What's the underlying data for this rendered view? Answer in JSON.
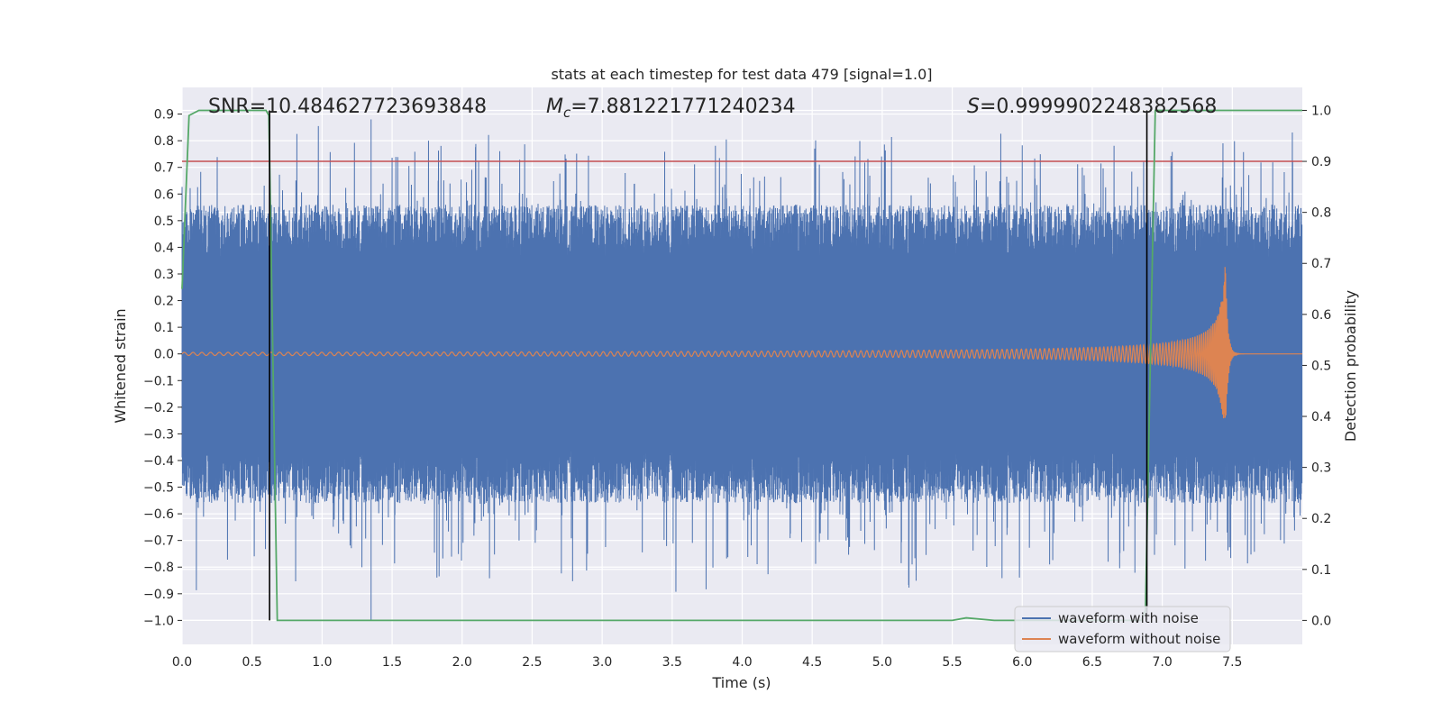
{
  "chart_data": {
    "type": "line",
    "title": "stats at each timestep for test data 479 [signal=1.0]",
    "xlabel": "Time (s)",
    "ylabel": "Whitened strain",
    "y2label": "Detection probability",
    "xlim": [
      0.0,
      8.0
    ],
    "ylim": [
      -1.09,
      1.0
    ],
    "y2lim": [
      -0.047,
      1.045
    ],
    "xticks": [
      "0.0",
      "0.5",
      "1.0",
      "1.5",
      "2.0",
      "2.5",
      "3.0",
      "3.5",
      "4.0",
      "4.5",
      "5.0",
      "5.5",
      "6.0",
      "6.5",
      "7.0",
      "7.5"
    ],
    "yticks": [
      "0.9",
      "0.8",
      "0.7",
      "0.6",
      "0.5",
      "0.4",
      "0.3",
      "0.2",
      "0.1",
      "0.0",
      "−0.1",
      "−0.2",
      "−0.3",
      "−0.4",
      "−0.5",
      "−0.6",
      "−0.7",
      "−0.8",
      "−0.9",
      "−1.0"
    ],
    "y2ticks": [
      "1.0",
      "0.9",
      "0.8",
      "0.7",
      "0.6",
      "0.5",
      "0.4",
      "0.3",
      "0.2",
      "0.1",
      "0.0"
    ],
    "annotations": {
      "snr": "SNR=10.484627723693848",
      "mc_symbol": "M",
      "mc_sub": "c",
      "mc_value": "=7.881221771240234",
      "s_symbol": "S",
      "s_value": "=0.9999902248382568"
    },
    "threshold": 0.9,
    "vlines": [
      0.625,
      6.89
    ],
    "series": [
      {
        "name": "waveform with noise",
        "color": "#4c72b0",
        "axis": "left",
        "description": "noisy whitened strain, envelope roughly -0.55..0.55 with spikes to about ±0.9; minimum -1.0 at t=1.35, maximum 0.88 at t=1.36"
      },
      {
        "name": "waveform without noise",
        "color": "#dd8452",
        "axis": "left",
        "description": "chirp signal, amplitude grows from 0.01 to 0.35 peak near t=7.45 then rings down to 0"
      },
      {
        "name": "detection probability",
        "color": "#55a868",
        "axis": "right",
        "points": [
          [
            0.0,
            0.65
          ],
          [
            0.05,
            0.99
          ],
          [
            0.12,
            1.0
          ],
          [
            0.6,
            1.0
          ],
          [
            0.62,
            0.99
          ],
          [
            0.68,
            0.0
          ],
          [
            0.75,
            0.0
          ],
          [
            5.5,
            0.0
          ],
          [
            5.6,
            0.005
          ],
          [
            5.8,
            0.0
          ],
          [
            6.85,
            0.0
          ],
          [
            6.88,
            0.02
          ],
          [
            6.95,
            1.0
          ],
          [
            8.0,
            1.0
          ]
        ]
      },
      {
        "name": "threshold",
        "color": "#c44e52",
        "axis": "right",
        "points": [
          [
            0.0,
            0.9
          ],
          [
            8.0,
            0.9
          ]
        ]
      }
    ],
    "legend": {
      "position": "lower-right",
      "entries": [
        {
          "label": "waveform with noise",
          "color": "#4c72b0"
        },
        {
          "label": "waveform without noise",
          "color": "#dd8452"
        }
      ]
    }
  }
}
